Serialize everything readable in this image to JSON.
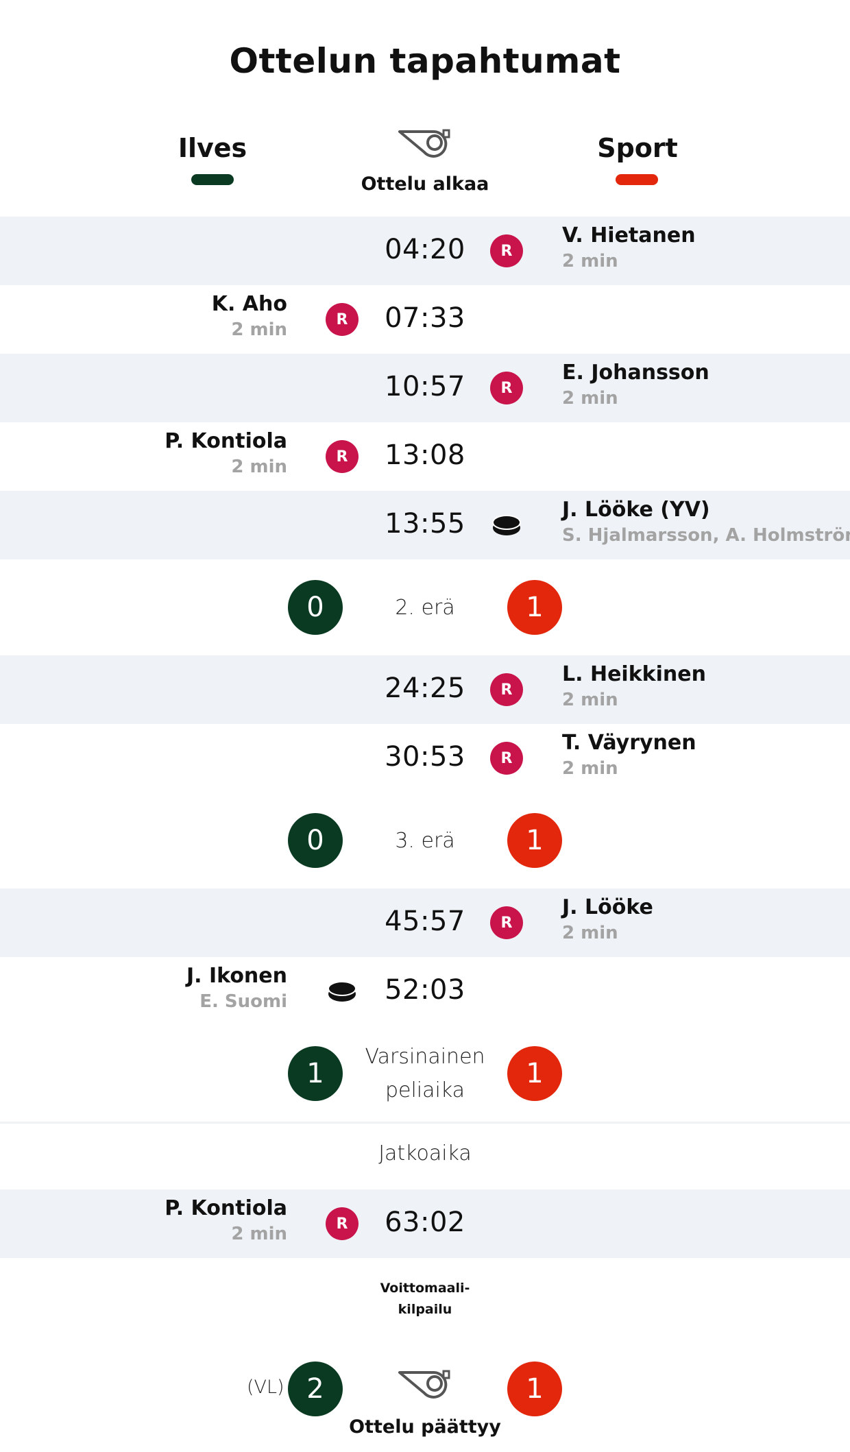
{
  "title": "Ottelun tapahtumat",
  "teams": {
    "home": {
      "name": "Ilves",
      "color": "#0b3a22"
    },
    "away": {
      "name": "Sport",
      "color": "#e2270c"
    }
  },
  "colors": {
    "penalty_badge": "#c8144a",
    "row_shade": "#eff3f7"
  },
  "start": {
    "label": "Ottelu alkaa",
    "icon": "whistle-icon"
  },
  "events": [
    {
      "time": "04:20",
      "side": "away",
      "type": "penalty",
      "badge": "R",
      "player": "V. Hietanen",
      "detail": "2 min"
    },
    {
      "time": "07:33",
      "side": "home",
      "type": "penalty",
      "badge": "R",
      "player": "K. Aho",
      "detail": "2 min"
    },
    {
      "time": "10:57",
      "side": "away",
      "type": "penalty",
      "badge": "R",
      "player": "E. Johansson",
      "detail": "2 min"
    },
    {
      "time": "13:08",
      "side": "home",
      "type": "penalty",
      "badge": "R",
      "player": "P. Kontiola",
      "detail": "2 min"
    },
    {
      "time": "13:55",
      "side": "away",
      "type": "goal",
      "player": "J. Lööke (YV)",
      "detail": "S. Hjalmarsson, A. Holmström"
    },
    {
      "time": "24:25",
      "side": "away",
      "type": "penalty",
      "badge": "R",
      "player": "L. Heikkinen",
      "detail": "2 min"
    },
    {
      "time": "30:53",
      "side": "away",
      "type": "penalty",
      "badge": "R",
      "player": "T. Väyrynen",
      "detail": "2 min"
    },
    {
      "time": "45:57",
      "side": "away",
      "type": "penalty",
      "badge": "R",
      "player": "J. Lööke",
      "detail": "2 min"
    },
    {
      "time": "52:03",
      "side": "home",
      "type": "goal",
      "player": "J. Ikonen",
      "detail": "E. Suomi"
    },
    {
      "time": "63:02",
      "side": "home",
      "type": "penalty",
      "badge": "R",
      "player": "P. Kontiola",
      "detail": "2 min"
    }
  ],
  "periods": [
    {
      "label": "2. erä",
      "home": "0",
      "away": "1"
    },
    {
      "label": "3. erä",
      "home": "0",
      "away": "1"
    },
    {
      "label_line1": "Varsinainen",
      "label_line2": "peliaika",
      "home": "1",
      "away": "1"
    }
  ],
  "overtime_label": "Jatkoaika",
  "shootout": {
    "line1": "Voittomaali-",
    "line2": "kilpailu"
  },
  "final": {
    "home": "2",
    "away": "1",
    "home_note": "(VL)",
    "label": "Ottelu päättyy",
    "icon": "whistle-icon"
  }
}
